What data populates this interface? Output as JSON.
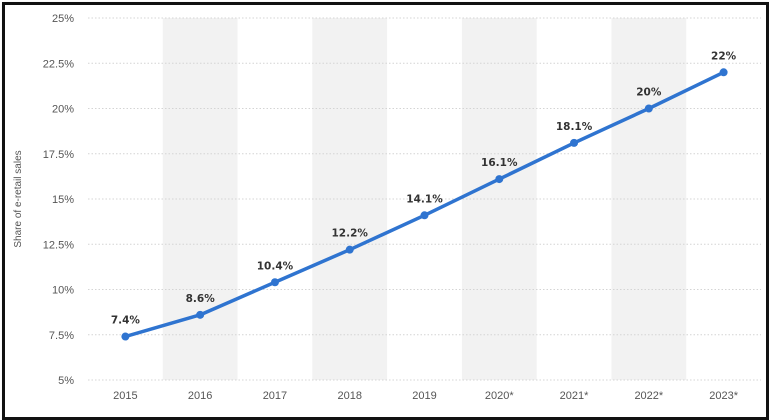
{
  "chart_data": {
    "type": "line",
    "categories": [
      "2015",
      "2016",
      "2017",
      "2018",
      "2019",
      "2020*",
      "2021*",
      "2022*",
      "2023*"
    ],
    "values": [
      7.4,
      8.6,
      10.4,
      12.2,
      14.1,
      16.1,
      18.1,
      20,
      22
    ],
    "data_labels": [
      "7.4%",
      "8.6%",
      "10.4%",
      "12.2%",
      "14.1%",
      "16.1%",
      "18.1%",
      "20%",
      "22%"
    ],
    "ylabel": "Share of e-retail sales",
    "yticks": [
      "5%",
      "7.5%",
      "10%",
      "12.5%",
      "15%",
      "17.5%",
      "20%",
      "22.5%",
      "25%"
    ],
    "ytick_values": [
      5,
      7.5,
      10,
      12.5,
      15,
      17.5,
      20,
      22.5,
      25
    ],
    "ylim": [
      5,
      25
    ],
    "grid": "horizontal dotted lines",
    "colors": {
      "line": "#2f74d0",
      "band": "#f2f2f2",
      "grid": "#d4d4d4"
    }
  }
}
